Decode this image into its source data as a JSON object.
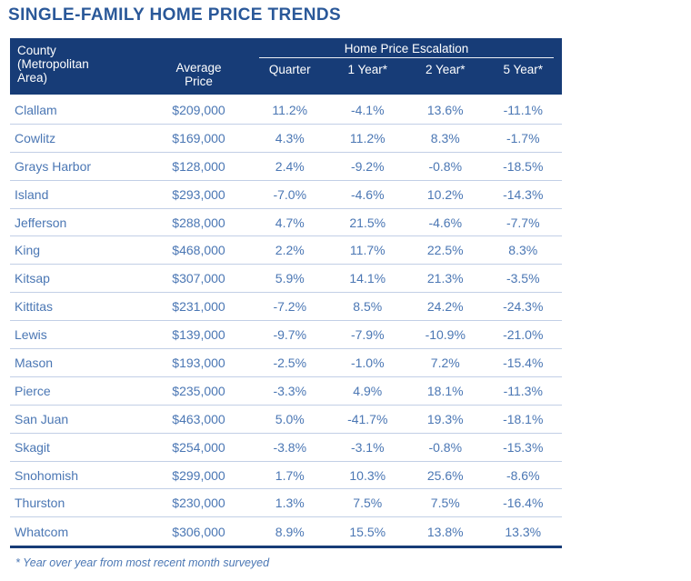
{
  "title": "SINGLE-FAMILY HOME PRICE TRENDS",
  "colors": {
    "navy": "#173c77",
    "title": "#2a5899",
    "rowtext": "#4b77b4",
    "separator": "#c2cfe6"
  },
  "table": {
    "county_header": "County (Metropolitan Area)",
    "price_header": "Average Price",
    "escalation_header": "Home Price Escalation",
    "period_headers": [
      "Quarter",
      "1 Year*",
      "2 Year*",
      "5 Year*"
    ],
    "rows": [
      {
        "county": "Clallam",
        "average_price": "$209,000",
        "quarter": "11.2%",
        "one_year": "-4.1%",
        "two_year": "13.6%",
        "five_year": "-11.1%"
      },
      {
        "county": "Cowlitz",
        "average_price": "$169,000",
        "quarter": "4.3%",
        "one_year": "11.2%",
        "two_year": "8.3%",
        "five_year": "-1.7%"
      },
      {
        "county": "Grays Harbor",
        "average_price": "$128,000",
        "quarter": "2.4%",
        "one_year": "-9.2%",
        "two_year": "-0.8%",
        "five_year": "-18.5%"
      },
      {
        "county": "Island",
        "average_price": "$293,000",
        "quarter": "-7.0%",
        "one_year": "-4.6%",
        "two_year": "10.2%",
        "five_year": "-14.3%"
      },
      {
        "county": "Jefferson",
        "average_price": "$288,000",
        "quarter": "4.7%",
        "one_year": "21.5%",
        "two_year": "-4.6%",
        "five_year": "-7.7%"
      },
      {
        "county": "King",
        "average_price": "$468,000",
        "quarter": "2.2%",
        "one_year": "11.7%",
        "two_year": "22.5%",
        "five_year": "8.3%"
      },
      {
        "county": "Kitsap",
        "average_price": "$307,000",
        "quarter": "5.9%",
        "one_year": "14.1%",
        "two_year": "21.3%",
        "five_year": "-3.5%"
      },
      {
        "county": "Kittitas",
        "average_price": "$231,000",
        "quarter": "-7.2%",
        "one_year": "8.5%",
        "two_year": "24.2%",
        "five_year": "-24.3%"
      },
      {
        "county": "Lewis",
        "average_price": "$139,000",
        "quarter": "-9.7%",
        "one_year": "-7.9%",
        "two_year": "-10.9%",
        "five_year": "-21.0%"
      },
      {
        "county": "Mason",
        "average_price": "$193,000",
        "quarter": "-2.5%",
        "one_year": "-1.0%",
        "two_year": "7.2%",
        "five_year": "-15.4%"
      },
      {
        "county": "Pierce",
        "average_price": "$235,000",
        "quarter": "-3.3%",
        "one_year": "4.9%",
        "two_year": "18.1%",
        "five_year": "-11.3%"
      },
      {
        "county": "San Juan",
        "average_price": "$463,000",
        "quarter": "5.0%",
        "one_year": "-41.7%",
        "two_year": "19.3%",
        "five_year": "-18.1%"
      },
      {
        "county": "Skagit",
        "average_price": "$254,000",
        "quarter": "-3.8%",
        "one_year": "-3.1%",
        "two_year": "-0.8%",
        "five_year": "-15.3%"
      },
      {
        "county": "Snohomish",
        "average_price": "$299,000",
        "quarter": "1.7%",
        "one_year": "10.3%",
        "two_year": "25.6%",
        "five_year": "-8.6%"
      },
      {
        "county": "Thurston",
        "average_price": "$230,000",
        "quarter": "1.3%",
        "one_year": "7.5%",
        "two_year": "7.5%",
        "five_year": "-16.4%"
      },
      {
        "county": "Whatcom",
        "average_price": "$306,000",
        "quarter": "8.9%",
        "one_year": "15.5%",
        "two_year": "13.8%",
        "five_year": "13.3%"
      }
    ]
  },
  "footnote": "* Year over year from most recent month surveyed"
}
